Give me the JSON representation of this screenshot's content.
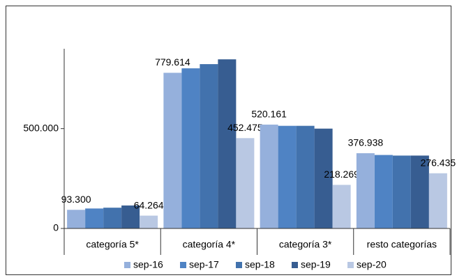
{
  "chart_data": {
    "type": "bar",
    "categories": [
      "categoría 5*",
      "categoría 4*",
      "categoría 3*",
      "resto categorías"
    ],
    "series": [
      {
        "name": "sep-16",
        "color": "#95b0dc",
        "values": [
          93300,
          779614,
          520161,
          376938
        ],
        "value_labels": [
          "93.300",
          "779.614",
          "520.161",
          "376.938"
        ]
      },
      {
        "name": "sep-17",
        "color": "#4f83c4",
        "values": [
          100000,
          802000,
          514000,
          368000
        ]
      },
      {
        "name": "sep-18",
        "color": "#4272ad",
        "values": [
          104000,
          823000,
          514000,
          365000
        ]
      },
      {
        "name": "sep-19",
        "color": "#375d91",
        "values": [
          115000,
          847000,
          500000,
          365000
        ]
      },
      {
        "name": "sep-20",
        "color": "#b9c8e3",
        "values": [
          64264,
          452475,
          218269,
          276435
        ],
        "value_labels": [
          "64.264",
          "452.475",
          "218.269",
          "276.435"
        ]
      }
    ],
    "ylim": [
      0,
      900000
    ],
    "yticks": [
      0,
      {
        "value": 500000,
        "label": "500.000"
      }
    ],
    "legend": "bottom"
  }
}
